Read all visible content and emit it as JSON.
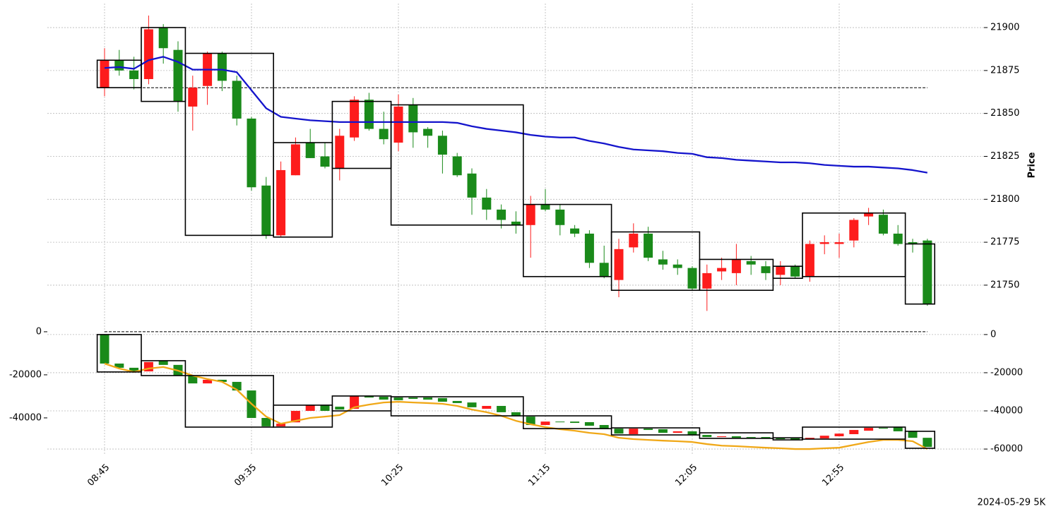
{
  "chart_data": [
    {
      "type": "candlestick",
      "ylabel": "Price",
      "y_axis_side": "right",
      "grid": true,
      "ylim": [
        21729,
        21914
      ],
      "yticks": [
        21750,
        21775,
        21800,
        21825,
        21850,
        21875,
        21900
      ],
      "up_color": "#fd1c1c",
      "down_color": "#1a8a1a",
      "box_color": "#000000",
      "open": [
        21865,
        21881,
        21875,
        21870,
        21900,
        21887,
        21854,
        21866,
        21885,
        21869,
        21847,
        21808,
        21779,
        21814,
        21833,
        21825,
        21818,
        21836,
        21858,
        21841,
        21833,
        21855,
        21841,
        21837,
        21825,
        21815,
        21801,
        21794,
        21787,
        21785,
        21797,
        21794,
        21783,
        21780,
        21763,
        21753,
        21772,
        21780,
        21765,
        21762,
        21760,
        21748,
        21758,
        21757,
        21764,
        21761,
        21756,
        21761,
        21755,
        21774,
        21774,
        21776,
        21790,
        21791,
        21780,
        21775,
        21776
      ],
      "high": [
        21888,
        21887,
        21883,
        21907,
        21902,
        21892,
        21872,
        21886,
        21886,
        21872,
        21848,
        21813,
        21822,
        21836,
        21841,
        21833,
        21841,
        21860,
        21862,
        21851,
        21861,
        21859,
        21842,
        21840,
        21827,
        21818,
        21806,
        21797,
        21793,
        21802,
        21806,
        21797,
        21785,
        21782,
        21773,
        21777,
        21786,
        21784,
        21770,
        21765,
        21761,
        21762,
        21766,
        21774,
        21767,
        21764,
        21764,
        21762,
        21776,
        21779,
        21780,
        21789,
        21795,
        21794,
        21785,
        21777,
        21777
      ],
      "low": [
        21860,
        21872,
        21864,
        21867,
        21879,
        21851,
        21840,
        21855,
        21863,
        21843,
        21805,
        21777,
        21778,
        21814,
        21824,
        21818,
        21811,
        21834,
        21840,
        21832,
        21828,
        21830,
        21830,
        21815,
        21813,
        21791,
        21788,
        21783,
        21780,
        21766,
        21793,
        21779,
        21778,
        21760,
        21754,
        21743,
        21769,
        21764,
        21759,
        21756,
        21747,
        21735,
        21753,
        21750,
        21756,
        21753,
        21750,
        21754,
        21752,
        21768,
        21766,
        21772,
        21785,
        21779,
        21773,
        21769,
        21738
      ],
      "close": [
        21881,
        21875,
        21870,
        21899,
        21888,
        21857,
        21865,
        21885,
        21869,
        21847,
        21807,
        21779,
        21817,
        21832,
        21824,
        21819,
        21837,
        21858,
        21841,
        21835,
        21854,
        21839,
        21837,
        21826,
        21814,
        21801,
        21794,
        21788,
        21785,
        21797,
        21794,
        21785,
        21780,
        21763,
        21755,
        21771,
        21780,
        21766,
        21762,
        21760,
        21748,
        21757,
        21760,
        21765,
        21762,
        21757,
        21761,
        21755,
        21774,
        21775,
        21775,
        21788,
        21792,
        21780,
        21774,
        21774,
        21739
      ],
      "series": [
        {
          "color": "#1414cc",
          "axis": "y",
          "values": [
            21876.5,
            21877,
            21876,
            21881,
            21883,
            21880,
            21875.5,
            21875.5,
            21875.5,
            21874,
            21863.5,
            21853,
            21848,
            21847,
            21846,
            21845.5,
            21845,
            21845,
            21845,
            21845,
            21845,
            21845,
            21845,
            21845,
            21844.5,
            21842.5,
            21841,
            21840,
            21839,
            21837.5,
            21836.5,
            21836,
            21836,
            21834,
            21832.5,
            21830.5,
            21829,
            21828.5,
            21828,
            21827,
            21826.5,
            21824.5,
            21824,
            21823,
            21822.5,
            21822,
            21821.5,
            21821.5,
            21821,
            21820,
            21819.5,
            21819,
            21819,
            21818.5,
            21818,
            21817,
            21815.5
          ]
        }
      ],
      "hline": {
        "value": 21865,
        "axis": "y"
      },
      "boxes": [
        {
          "first": 0,
          "last": 2,
          "high": 21881,
          "low": 21865
        },
        {
          "first": 3,
          "last": 5,
          "high": 21900,
          "low": 21857
        },
        {
          "first": 6,
          "last": 11,
          "high": 21885,
          "low": 21779
        },
        {
          "first": 12,
          "last": 15,
          "high": 21833,
          "low": 21778
        },
        {
          "first": 16,
          "last": 19,
          "high": 21857,
          "low": 21818
        },
        {
          "first": 20,
          "last": 28,
          "high": 21855,
          "low": 21785
        },
        {
          "first": 29,
          "last": 34,
          "high": 21797,
          "low": 21755
        },
        {
          "first": 35,
          "last": 40,
          "high": 21781,
          "low": 21747
        },
        {
          "first": 41,
          "last": 45,
          "high": 21765,
          "low": 21747
        },
        {
          "first": 46,
          "last": 47,
          "high": 21761,
          "low": 21754
        },
        {
          "first": 48,
          "last": 54,
          "high": 21792,
          "low": 21755
        },
        {
          "first": 55,
          "last": 56,
          "high": 21774,
          "low": 21739
        }
      ]
    },
    {
      "type": "candlestick",
      "xlabel": "2024-05-29 5K",
      "grid": true,
      "candle_axis": "y2",
      "categories": [
        "08:45",
        null,
        null,
        null,
        null,
        null,
        null,
        null,
        null,
        null,
        "09:35",
        null,
        null,
        null,
        null,
        null,
        null,
        null,
        null,
        null,
        "10:25",
        null,
        null,
        null,
        null,
        null,
        null,
        null,
        null,
        null,
        "11:15",
        null,
        null,
        null,
        null,
        null,
        null,
        null,
        null,
        null,
        "12:05",
        null,
        null,
        null,
        null,
        null,
        null,
        null,
        null,
        null,
        "12:55",
        null,
        null,
        null,
        null,
        null,
        null
      ],
      "ylim": [
        -57400,
        2600
      ],
      "yticks": [
        0,
        -20000,
        -40000
      ],
      "y2lim": [
        -63300,
        4400
      ],
      "y2ticks": [
        0,
        -20000,
        -40000,
        -60000
      ],
      "up_color": "#fd1c1c",
      "down_color": "#1a8a1a",
      "box_color": "#000000",
      "open": [
        0,
        -15200,
        -17400,
        -19300,
        -13700,
        -15900,
        -21500,
        -25600,
        -23700,
        -24800,
        -29300,
        -43700,
        -48100,
        -46000,
        -40000,
        -37000,
        -37800,
        -38900,
        -32200,
        -32600,
        -33000,
        -33000,
        -33000,
        -33300,
        -34800,
        -35600,
        -38900,
        -37400,
        -40700,
        -43000,
        -47400,
        -45600,
        -45600,
        -45900,
        -47400,
        -49300,
        -52200,
        -49300,
        -49600,
        -51500,
        -50700,
        -52600,
        -53700,
        -53300,
        -53700,
        -53700,
        -54100,
        -54400,
        -54800,
        -54400,
        -53300,
        -52200,
        -50400,
        -48900,
        -48500,
        -50700,
        -54100
      ],
      "close": [
        -15200,
        -17400,
        -19600,
        -14400,
        -15900,
        -21500,
        -25600,
        -23700,
        -24800,
        -29300,
        -43700,
        -48100,
        -46700,
        -40000,
        -37000,
        -40000,
        -39300,
        -32200,
        -33000,
        -34100,
        -34400,
        -33700,
        -34100,
        -35200,
        -35900,
        -38100,
        -37400,
        -40700,
        -42600,
        -47400,
        -45600,
        -45900,
        -46300,
        -47800,
        -49300,
        -51900,
        -49300,
        -50000,
        -51500,
        -50700,
        -52600,
        -53700,
        -53300,
        -54100,
        -54100,
        -54400,
        -54800,
        -55200,
        -54100,
        -53000,
        -51900,
        -50000,
        -48900,
        -49300,
        -50700,
        -54100,
        -58900
      ],
      "series": [
        {
          "color": "#f0a818",
          "axis": "y2",
          "values": [
            -15200,
            -17800,
            -19600,
            -17800,
            -17000,
            -18900,
            -21500,
            -23300,
            -24800,
            -28900,
            -36300,
            -43000,
            -46700,
            -45200,
            -43700,
            -43000,
            -42200,
            -38100,
            -36700,
            -35600,
            -35200,
            -35600,
            -35900,
            -36300,
            -37400,
            -39300,
            -40700,
            -42600,
            -45200,
            -47000,
            -48500,
            -49600,
            -50400,
            -51500,
            -52200,
            -54100,
            -54800,
            -55200,
            -55600,
            -55900,
            -56300,
            -57400,
            -58200,
            -58500,
            -58900,
            -59300,
            -59600,
            -60000,
            -60000,
            -59600,
            -59300,
            -57800,
            -56300,
            -55200,
            -55200,
            -55900,
            -60000
          ]
        }
      ],
      "hline": {
        "value": 0,
        "axis": "y"
      },
      "boxes": [
        {
          "first": 0,
          "last": 2,
          "high": 0,
          "low": -19600
        },
        {
          "first": 3,
          "last": 5,
          "high": -13700,
          "low": -21500
        },
        {
          "first": 6,
          "last": 11,
          "high": -21500,
          "low": -48500
        },
        {
          "first": 12,
          "last": 15,
          "high": -37000,
          "low": -48500
        },
        {
          "first": 16,
          "last": 19,
          "high": -32200,
          "low": -40000
        },
        {
          "first": 20,
          "last": 28,
          "high": -32600,
          "low": -42600
        },
        {
          "first": 29,
          "last": 34,
          "high": -42600,
          "low": -49300
        },
        {
          "first": 35,
          "last": 40,
          "high": -48900,
          "low": -52600
        },
        {
          "first": 41,
          "last": 45,
          "high": -51500,
          "low": -54400
        },
        {
          "first": 46,
          "last": 47,
          "high": -54100,
          "low": -55200
        },
        {
          "first": 48,
          "last": 54,
          "high": -48500,
          "low": -54800
        },
        {
          "first": 55,
          "last": 56,
          "high": -50700,
          "low": -59600
        }
      ]
    }
  ]
}
